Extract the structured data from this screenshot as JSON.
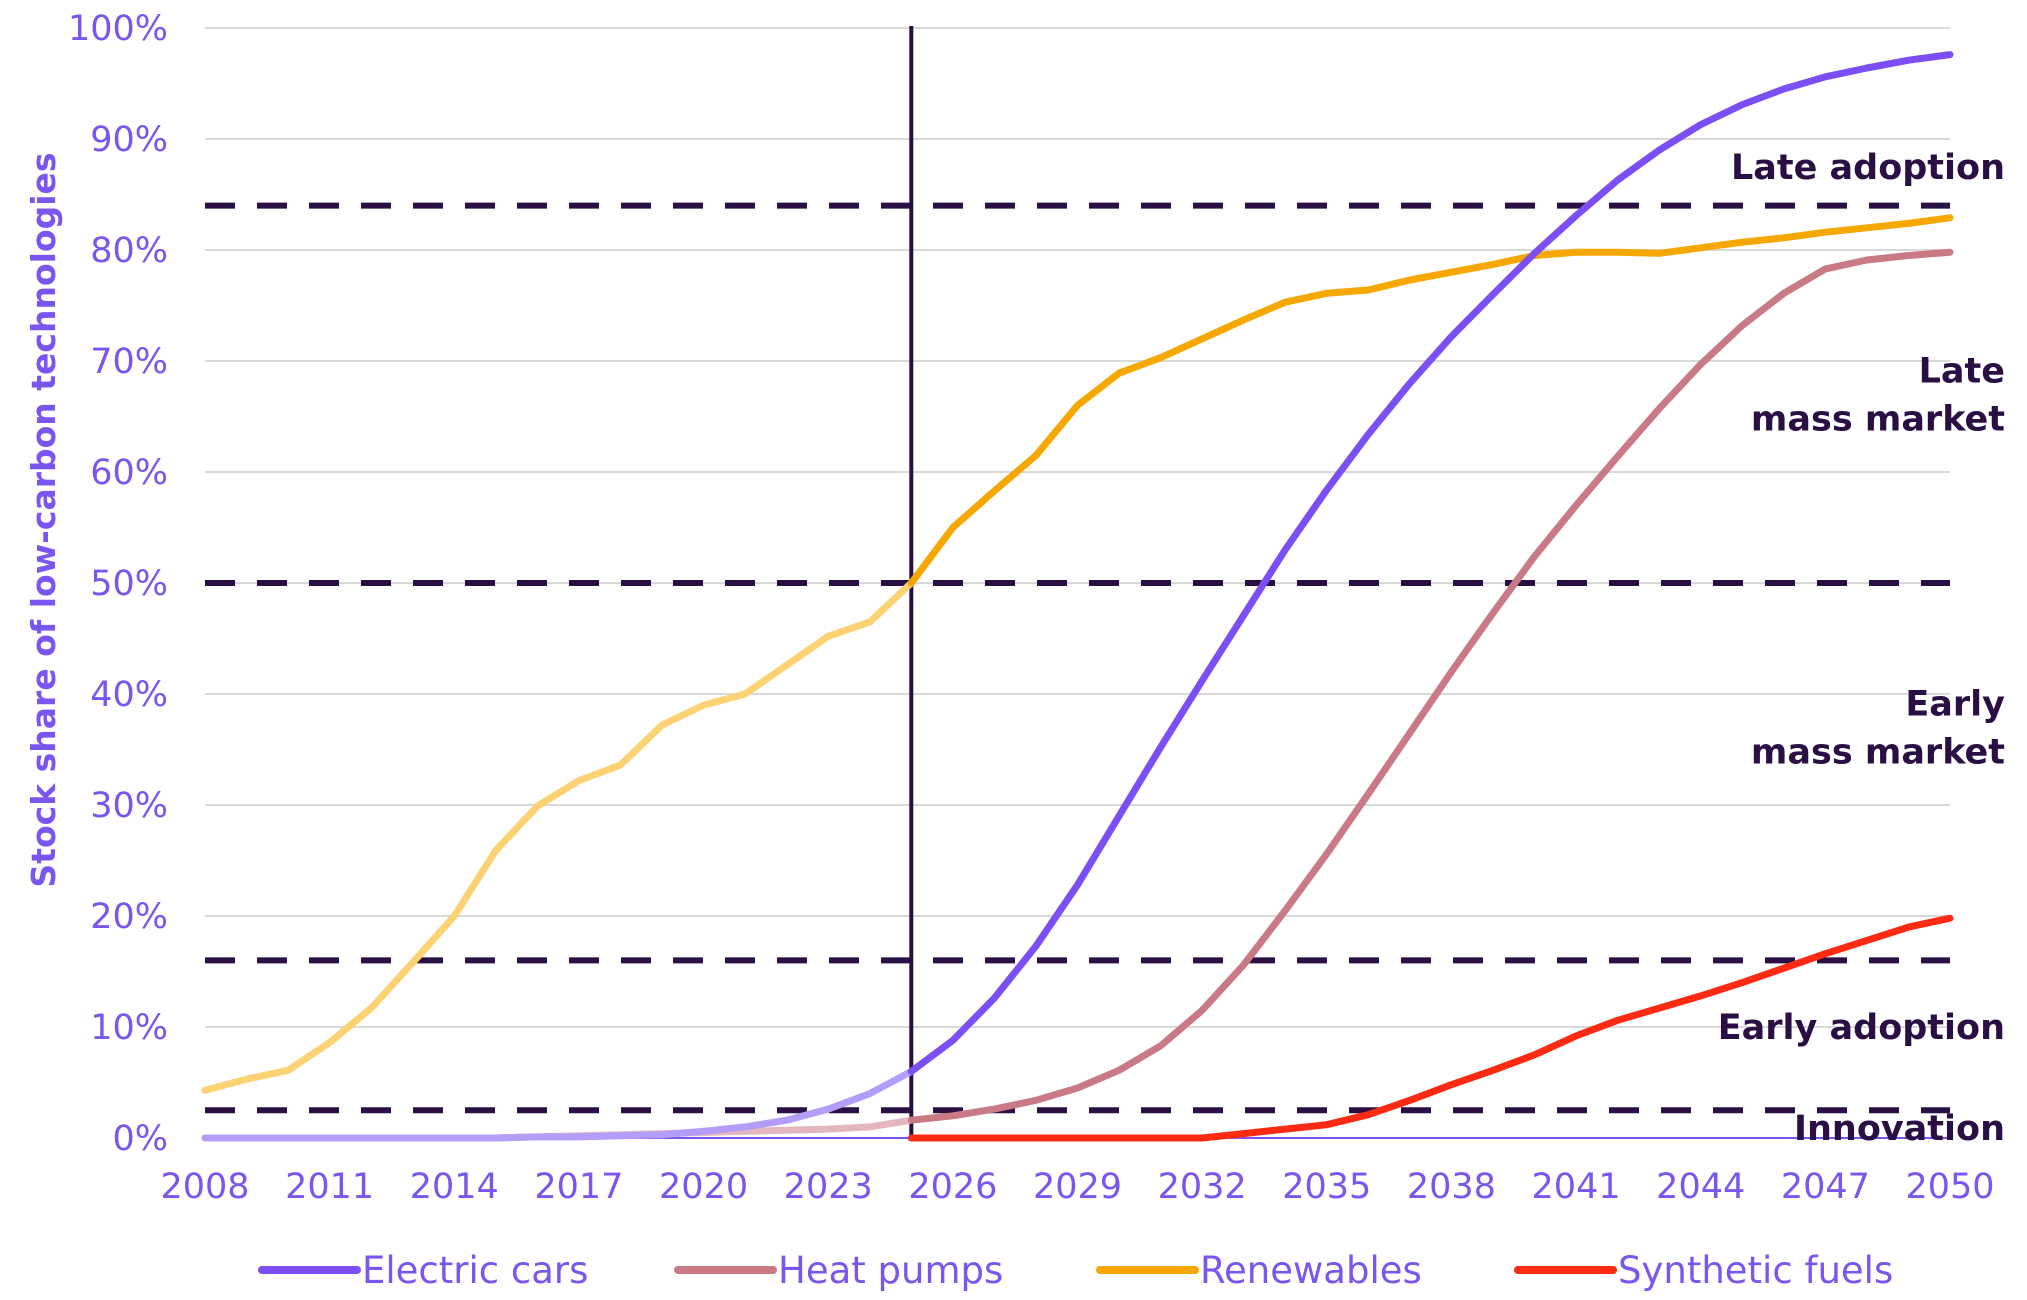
{
  "chart_data": {
    "type": "line",
    "title": "",
    "xlabel": "",
    "ylabel": "Stock share of low-carbon technologies",
    "xlim": [
      2008,
      2050
    ],
    "ylim": [
      0,
      100
    ],
    "x_ticks": [
      "2008",
      "2011",
      "2014",
      "2017",
      "2020",
      "2023",
      "2026",
      "2029",
      "2032",
      "2035",
      "2038",
      "2041",
      "2044",
      "2047",
      "2050"
    ],
    "y_ticks": [
      "0%",
      "10%",
      "20%",
      "30%",
      "40%",
      "50%",
      "60%",
      "70%",
      "80%",
      "90%",
      "100%"
    ],
    "grid": "horizontal",
    "legend_position": "bottom",
    "historical_divider_year": 2025,
    "thresholds": [
      2.5,
      16,
      50,
      84
    ],
    "band_labels": [
      {
        "lines": [
          "Late adoption"
        ],
        "y": 87.5
      },
      {
        "lines": [
          "Late",
          "mass market"
        ],
        "y": 67
      },
      {
        "lines": [
          "Early",
          "mass market"
        ],
        "y": 37
      },
      {
        "lines": [
          "Early adoption"
        ],
        "y": 10
      },
      {
        "lines": [
          "Innovation"
        ],
        "y": 0.9
      }
    ],
    "series": [
      {
        "name": "Electric cars",
        "color": "#7b4ff5",
        "historical_color": "#b49dfa",
        "x": [
          2008,
          2009,
          2010,
          2011,
          2012,
          2013,
          2014,
          2015,
          2016,
          2017,
          2018,
          2019,
          2020,
          2021,
          2022,
          2023,
          2024,
          2025,
          2026,
          2027,
          2028,
          2029,
          2030,
          2031,
          2032,
          2033,
          2034,
          2035,
          2036,
          2037,
          2038,
          2039,
          2040,
          2041,
          2042,
          2043,
          2044,
          2045,
          2046,
          2047,
          2048,
          2049,
          2050
        ],
        "values": [
          0,
          0,
          0,
          0,
          0,
          0,
          0,
          0,
          0.1,
          0.1,
          0.2,
          0.3,
          0.6,
          1,
          1.6,
          2.6,
          4,
          6,
          8.8,
          12.6,
          17.3,
          22.8,
          29,
          35.2,
          41.2,
          47.1,
          53,
          58.4,
          63.4,
          68,
          72.2,
          76,
          79.7,
          83.1,
          86.3,
          89,
          91.3,
          93.1,
          94.5,
          95.6,
          96.4,
          97.1,
          97.6
        ]
      },
      {
        "name": "Heat pumps",
        "color": "#c97a85",
        "historical_color": "#e3b7bd",
        "x": [
          2008,
          2009,
          2010,
          2011,
          2012,
          2013,
          2014,
          2015,
          2016,
          2017,
          2018,
          2019,
          2020,
          2021,
          2022,
          2023,
          2024,
          2025,
          2026,
          2027,
          2028,
          2029,
          2030,
          2031,
          2032,
          2033,
          2034,
          2035,
          2036,
          2037,
          2038,
          2039,
          2040,
          2041,
          2042,
          2043,
          2044,
          2045,
          2046,
          2047,
          2048,
          2049,
          2050
        ],
        "values": [
          0,
          0,
          0,
          0,
          0,
          0,
          0,
          0,
          0.1,
          0.2,
          0.3,
          0.4,
          0.5,
          0.6,
          0.7,
          0.8,
          1,
          1.6,
          2,
          2.6,
          3.4,
          4.5,
          6.1,
          8.3,
          11.5,
          15.6,
          20.5,
          25.6,
          31,
          36.5,
          42,
          47.3,
          52.4,
          57,
          61.4,
          65.7,
          69.7,
          73.2,
          76.1,
          78.3,
          79.1,
          79.5,
          79.8
        ]
      },
      {
        "name": "Renewables",
        "color": "#f7a800",
        "historical_color": "#fcd273",
        "x": [
          2008,
          2009,
          2010,
          2011,
          2012,
          2013,
          2014,
          2015,
          2016,
          2017,
          2018,
          2019,
          2020,
          2021,
          2022,
          2023,
          2024,
          2025,
          2026,
          2027,
          2028,
          2029,
          2030,
          2031,
          2032,
          2033,
          2034,
          2035,
          2036,
          2037,
          2038,
          2039,
          2040,
          2041,
          2042,
          2043,
          2044,
          2045,
          2046,
          2047,
          2048,
          2049,
          2050
        ],
        "values": [
          4.3,
          5.3,
          6.1,
          8.6,
          11.7,
          15.8,
          20,
          25.9,
          29.9,
          32.2,
          33.6,
          37.2,
          39,
          40,
          42.6,
          45.2,
          46.5,
          50,
          55,
          58.3,
          61.5,
          66,
          68.9,
          70.3,
          72,
          73.7,
          75.3,
          76.1,
          76.4,
          77.3,
          78,
          78.7,
          79.5,
          79.8,
          79.8,
          79.7,
          80.2,
          80.7,
          81.1,
          81.6,
          82,
          82.4,
          82.9
        ]
      },
      {
        "name": "Synthetic fuels",
        "color": "#ff2a12",
        "historical_color": "#ff2a12",
        "x": [
          2025,
          2026,
          2027,
          2028,
          2029,
          2030,
          2031,
          2032,
          2033,
          2034,
          2035,
          2036,
          2037,
          2038,
          2039,
          2040,
          2041,
          2042,
          2043,
          2044,
          2045,
          2046,
          2047,
          2048,
          2049,
          2050
        ],
        "values": [
          0,
          0,
          0,
          0,
          0,
          0,
          0,
          0,
          0.4,
          0.8,
          1.2,
          2.1,
          3.4,
          4.8,
          6.1,
          7.5,
          9.2,
          10.6,
          11.7,
          12.8,
          14,
          15.3,
          16.6,
          17.8,
          19,
          19.8
        ]
      }
    ]
  }
}
